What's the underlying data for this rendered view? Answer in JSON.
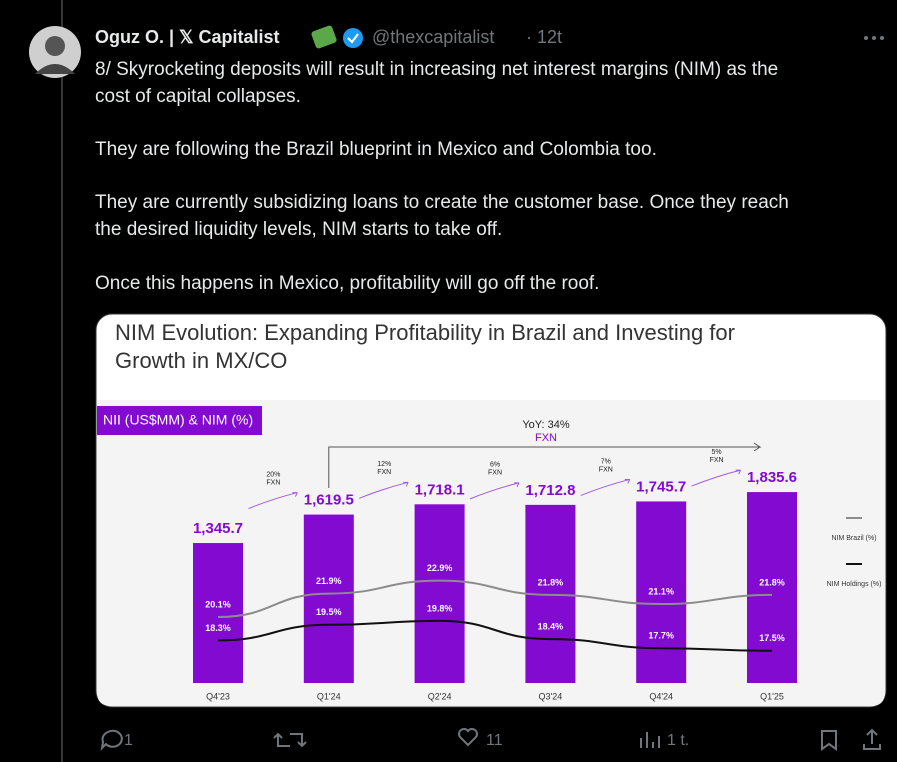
{
  "author": {
    "name": "Oguz O. | 𝕏 Capitalist",
    "handle": "@thexcapitalist",
    "time": "· 12t"
  },
  "text_lines": [
    "8/ Skyrocketing deposits will result in increasing net interest margins (NIM) as the",
    "cost of capital collapses.",
    "They are following the Brazil blueprint in Mexico and Colombia too.",
    "They are currently subsidizing loans to create the customer base. Once they reach",
    "the desired liquidity levels, NIM starts to take off.",
    "Once this happens in Mexico, profitability will go off the roof."
  ],
  "chart_data": {
    "type": "bar",
    "title": [
      "NIM Evolution: Expanding Profitability in Brazil and Investing for",
      "Growth in MX/CO"
    ],
    "badge": "NII (US$MM) & NIM (%)",
    "categories": [
      "Q4'23",
      "Q1'24",
      "Q2'24",
      "Q3'24",
      "Q4'24",
      "Q1'25"
    ],
    "series": [
      {
        "name": "NII (US$MM)",
        "color": "#820ad1",
        "values": [
          1345.7,
          1619.5,
          1718.1,
          1712.8,
          1745.7,
          1835.6
        ],
        "value_labels": [
          "1,345.7",
          "1,619.5",
          "1,718.1",
          "1,712.8",
          "1,745.7",
          "1,835.6"
        ]
      }
    ],
    "lines": [
      {
        "name": "NIM Brazil (%)",
        "color": "#8c8c8c",
        "values": [
          20.1,
          21.9,
          22.9,
          21.8,
          21.1,
          21.8
        ],
        "value_labels": [
          "20.1%",
          "21.9%",
          "22.9%",
          "21.8%",
          "21.1%",
          "21.8%"
        ]
      },
      {
        "name": "NIM Holdings (%)",
        "color": "#111111",
        "values": [
          18.3,
          19.5,
          19.8,
          18.4,
          17.7,
          17.5
        ],
        "value_labels": [
          "18.3%",
          "19.5%",
          "19.8%",
          "18.4%",
          "17.7%",
          "17.5%"
        ]
      }
    ],
    "growth": [
      {
        "pct": "20%",
        "note": "FXN"
      },
      {
        "pct": "12%",
        "note": "FXN"
      },
      {
        "pct": "6%",
        "note": "FXN"
      },
      {
        "pct": "7%",
        "note": "FXN"
      },
      {
        "pct": "5%",
        "note": "FXN"
      }
    ],
    "yoy": {
      "label": "YoY: 34%",
      "note": "FXN"
    }
  },
  "actions": {
    "replies": "1",
    "likes": "11",
    "views": "1 t."
  }
}
